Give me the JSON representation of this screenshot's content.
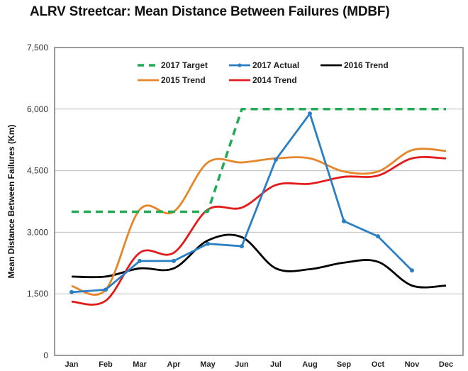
{
  "chart_data": {
    "type": "line",
    "title": "ALRV Streetcar: Mean Distance Between Failures (MDBF)",
    "xlabel": "",
    "ylabel": "Mean Distance Between Failures (Km)",
    "ylim": [
      0,
      7500
    ],
    "yticks": [
      0,
      1500,
      3000,
      4500,
      6000,
      7500
    ],
    "ytick_labels": [
      "0",
      "1,500",
      "3,000",
      "4,500",
      "6,000",
      "7,500"
    ],
    "grid": "horizontal",
    "legend_position": "top-center",
    "categories": [
      "Jan",
      "Feb",
      "Mar",
      "Apr",
      "May",
      "Jun",
      "Jul",
      "Aug",
      "Sep",
      "Oct",
      "Nov",
      "Dec"
    ],
    "series": [
      {
        "name": "2017 Target",
        "color": "#22aa55",
        "style": "dashed",
        "smooth": false,
        "markers": false,
        "values": [
          3500,
          3500,
          3500,
          3500,
          3500,
          6000,
          6000,
          6000,
          6000,
          6000,
          6000,
          6000
        ]
      },
      {
        "name": "2017 Actual",
        "color": "#2a7fc4",
        "style": "solid",
        "smooth": false,
        "markers": true,
        "values": [
          1540,
          1600,
          2300,
          2300,
          2720,
          2660,
          4770,
          5890,
          3270,
          2900,
          2070,
          null
        ]
      },
      {
        "name": "2016 Trend",
        "color": "#000000",
        "style": "solid",
        "smooth": true,
        "markers": false,
        "values": [
          1920,
          1920,
          2120,
          2120,
          2800,
          2880,
          2120,
          2100,
          2260,
          2280,
          1700,
          1700
        ]
      },
      {
        "name": "2015 Trend",
        "color": "#e6862a",
        "style": "solid",
        "smooth": true,
        "markers": false,
        "values": [
          1690,
          1600,
          3550,
          3500,
          4700,
          4700,
          4800,
          4800,
          4480,
          4480,
          5000,
          4980
        ]
      },
      {
        "name": "2014 Trend",
        "color": "#e31b1b",
        "style": "solid",
        "smooth": true,
        "markers": false,
        "values": [
          1310,
          1330,
          2500,
          2500,
          3550,
          3600,
          4150,
          4180,
          4350,
          4380,
          4800,
          4800
        ]
      }
    ],
    "legend_rows": [
      [
        "2017 Target",
        "2017 Actual",
        "2016 Trend"
      ],
      [
        "2015 Trend",
        "2014 Trend"
      ]
    ]
  }
}
